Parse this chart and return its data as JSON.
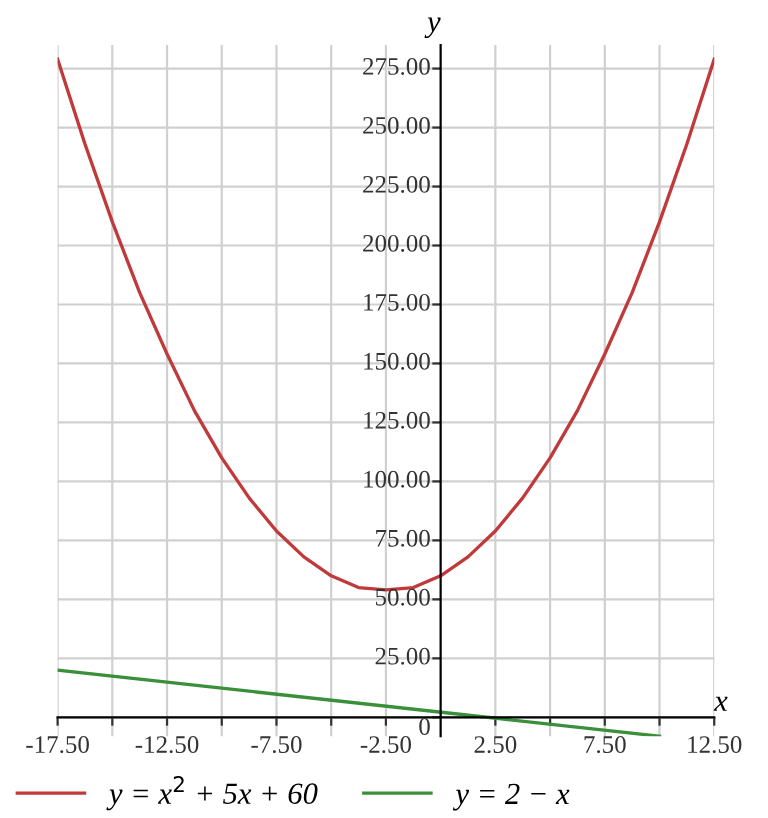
{
  "chart_data": {
    "type": "line",
    "xlabel": "x",
    "ylabel": "y",
    "xlim": [
      -17.5,
      12.5
    ],
    "ylim": [
      -8,
      285
    ],
    "xticks": [
      {
        "value": -17.5,
        "label": "-17.50"
      },
      {
        "value": -15,
        "label": null
      },
      {
        "value": -12.5,
        "label": "-12.50"
      },
      {
        "value": -10,
        "label": null
      },
      {
        "value": -7.5,
        "label": "-7.50"
      },
      {
        "value": -5,
        "label": null
      },
      {
        "value": -2.5,
        "label": "-2.50"
      },
      {
        "value": 2.5,
        "label": "2.50"
      },
      {
        "value": 5,
        "label": null
      },
      {
        "value": 7.5,
        "label": "7.50"
      },
      {
        "value": 10,
        "label": null
      },
      {
        "value": 12.5,
        "label": "12.50"
      }
    ],
    "yticks": [
      0,
      {
        "value": 25,
        "label": "25.00"
      },
      {
        "value": 50,
        "label": "50.00"
      },
      {
        "value": 75,
        "label": "75.00"
      },
      {
        "value": 100,
        "label": "100.00"
      },
      {
        "value": 125,
        "label": "125.00"
      },
      {
        "value": 150,
        "label": "150.00"
      },
      {
        "value": 175,
        "label": "175.00"
      },
      {
        "value": 200,
        "label": "200.00"
      },
      {
        "value": 225,
        "label": "225.00"
      },
      {
        "value": 250,
        "label": "250.00"
      },
      {
        "value": 275,
        "label": "275.00"
      }
    ],
    "grid": true,
    "legend": "bottom",
    "series": [
      {
        "name": "y = x$^{2}$ + 5x + 60",
        "color": "#c0393b",
        "x": [
          -17.5,
          -16.25,
          -15,
          -13.75,
          -12.5,
          -11.25,
          -10,
          -8.75,
          -7.5,
          -6.25,
          -5,
          -3.75,
          -2.5,
          -1.25,
          0,
          1.25,
          2.5,
          3.75,
          5,
          6.25,
          7.5,
          8.75,
          10,
          11.25,
          12.5
        ],
        "values": [
          279,
          243,
          210,
          180,
          154,
          130,
          110,
          93,
          79,
          68,
          60,
          55,
          54,
          55,
          60,
          68,
          79,
          93,
          110,
          130,
          154,
          180,
          210,
          243,
          279
        ]
      },
      {
        "name": "y = 2 − x",
        "color": "#3a8f3a",
        "x": [
          -17.5,
          10
        ],
        "values": [
          20,
          -8
        ]
      }
    ]
  }
}
